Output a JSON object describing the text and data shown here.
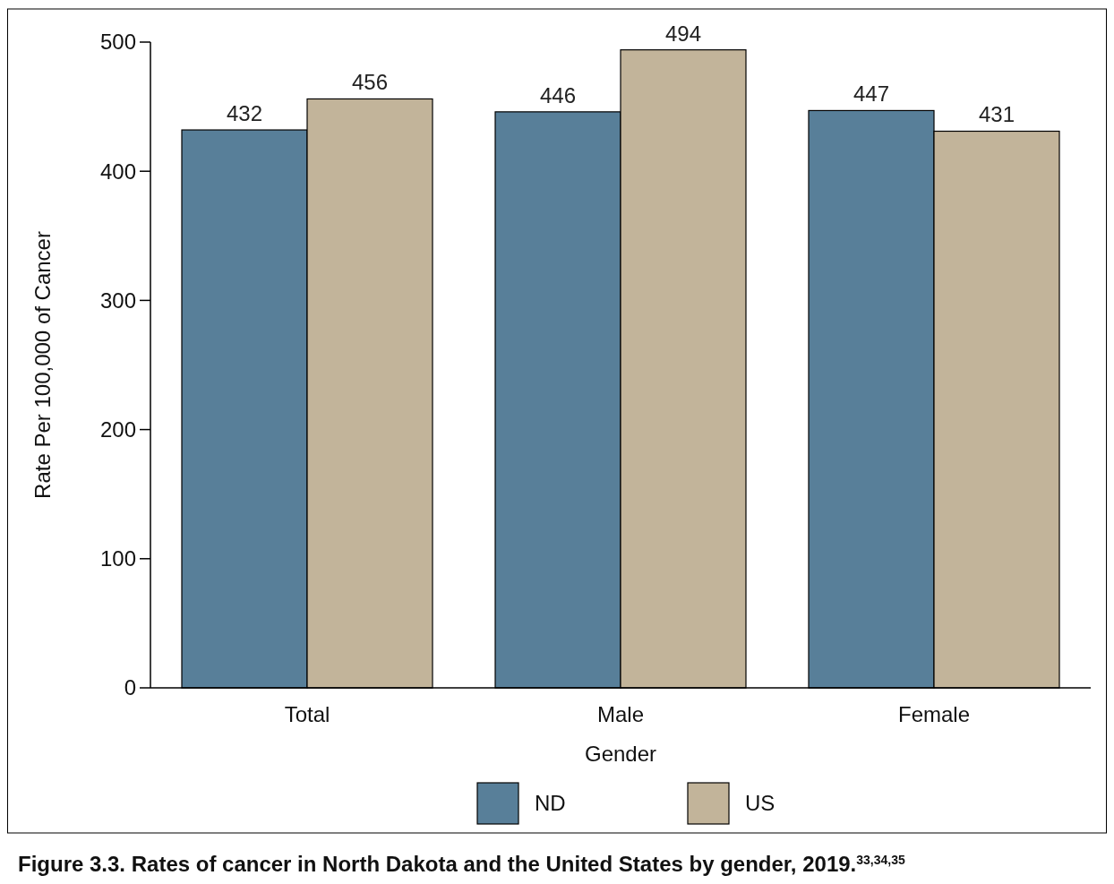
{
  "chart_data": {
    "type": "bar",
    "xlabel": "Gender",
    "ylabel": "Rate Per 100,000 of Cancer",
    "categories": [
      "Total",
      "Male",
      "Female"
    ],
    "series": [
      {
        "name": "ND",
        "color": "#587f99",
        "values": [
          432,
          446,
          447
        ]
      },
      {
        "name": "US",
        "color": "#c2b49a",
        "values": [
          456,
          494,
          431
        ]
      }
    ],
    "ylim": [
      0,
      500
    ],
    "yticks": [
      0,
      100,
      200,
      300,
      400,
      500
    ],
    "grid": false,
    "data_labels": true,
    "legend": "bottom",
    "annotations": [
      "Figure 3.3. Rates of cancer in North Dakota and the United States by gender, 2019.$^{33,34,35}$"
    ]
  }
}
